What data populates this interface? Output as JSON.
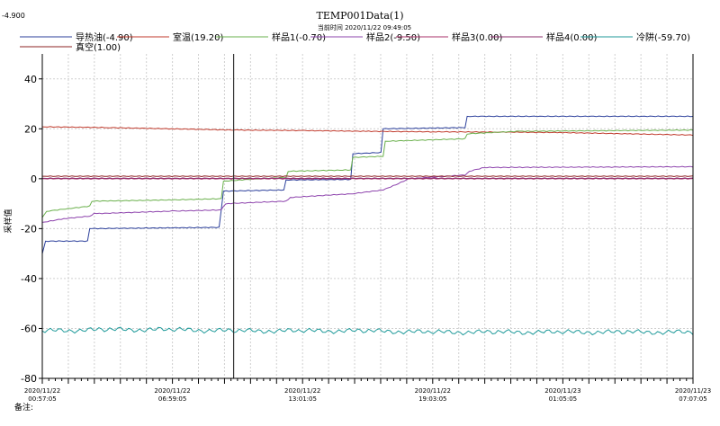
{
  "top_left_value": "-4.900",
  "title": "TEMP001Data(1)",
  "subtitle": "当前时间 2020/11/22  09:49:05",
  "ylabel": "采样值",
  "note_label": "备注:",
  "colors": {
    "background": "#ffffff",
    "grid": "#cfcfcf",
    "axis": "#000000",
    "cursor": "#333333"
  },
  "chart_data": {
    "type": "line",
    "title": "TEMP001Data(1)",
    "ylabel": "采样值",
    "xlabel": "",
    "ylim": [
      -80,
      50
    ],
    "yticks": [
      -80,
      -60,
      -40,
      -20,
      0,
      20,
      40
    ],
    "x_start": "2020/11/22 00:57:05",
    "x_end": "2020/11/23 07:07:05",
    "x_tick_labels": [
      [
        "2020/11/22",
        "00:57:05"
      ],
      [
        "2020/11/22",
        "06:59:05"
      ],
      [
        "2020/11/22",
        "13:01:05"
      ],
      [
        "2020/11/22",
        "19:03:05"
      ],
      [
        "2020/11/23",
        "01:05:05"
      ],
      [
        "2020/11/23",
        "07:07:05"
      ]
    ],
    "x_tick_hours": [
      0,
      6.0333,
      12.0667,
      18.1,
      24.1333,
      30.1667
    ],
    "x_range_hours": [
      0,
      30.1667
    ],
    "cursor_hours": 8.87,
    "grid": true,
    "legend_position": "top",
    "series": [
      {
        "name": "导热油(-4.90)",
        "color": "#2b3f9b",
        "points": [
          [
            0,
            -30
          ],
          [
            0.15,
            -25
          ],
          [
            2.1,
            -25
          ],
          [
            2.2,
            -20
          ],
          [
            8.2,
            -19.5
          ],
          [
            8.4,
            -5
          ],
          [
            11.2,
            -4.5
          ],
          [
            11.3,
            -0.5
          ],
          [
            14.3,
            -0.3
          ],
          [
            14.4,
            10
          ],
          [
            15.7,
            10.5
          ],
          [
            15.8,
            20
          ],
          [
            19.6,
            20.5
          ],
          [
            19.7,
            25
          ],
          [
            30.1667,
            25
          ]
        ]
      },
      {
        "name": "室温(19.20)",
        "color": "#c0392b",
        "points": [
          [
            0,
            20.8
          ],
          [
            3,
            20.5
          ],
          [
            6,
            20
          ],
          [
            9,
            19.5
          ],
          [
            12,
            19.3
          ],
          [
            15,
            19
          ],
          [
            18,
            18.8
          ],
          [
            21,
            18.7
          ],
          [
            24,
            18.5
          ],
          [
            27,
            18
          ],
          [
            30.1667,
            17.5
          ]
        ]
      },
      {
        "name": "样品1(-0.70)",
        "color": "#6ab04c",
        "points": [
          [
            0,
            -15.5
          ],
          [
            0.2,
            -13
          ],
          [
            2.2,
            -11
          ],
          [
            2.3,
            -9
          ],
          [
            6,
            -8.5
          ],
          [
            8.3,
            -8
          ],
          [
            8.4,
            -1
          ],
          [
            10,
            0
          ],
          [
            11.3,
            0.5
          ],
          [
            11.4,
            3
          ],
          [
            14.3,
            3.5
          ],
          [
            14.4,
            8.5
          ],
          [
            15.8,
            9
          ],
          [
            15.9,
            15
          ],
          [
            19.6,
            16
          ],
          [
            19.7,
            18
          ],
          [
            22,
            19
          ],
          [
            30.1667,
            19.5
          ]
        ]
      },
      {
        "name": "样品2(-9.50)",
        "color": "#8e44ad",
        "points": [
          [
            0,
            -17.5
          ],
          [
            1,
            -16
          ],
          [
            2.2,
            -15
          ],
          [
            2.4,
            -14
          ],
          [
            6,
            -13
          ],
          [
            8.3,
            -12.5
          ],
          [
            8.5,
            -10
          ],
          [
            11.3,
            -9
          ],
          [
            11.5,
            -7.5
          ],
          [
            14.4,
            -6
          ],
          [
            15.8,
            -4.5
          ],
          [
            16.5,
            -2
          ],
          [
            17,
            0
          ],
          [
            19.6,
            1.5
          ],
          [
            19.8,
            3
          ],
          [
            20.5,
            4.5
          ],
          [
            30.1667,
            4.8
          ]
        ]
      },
      {
        "name": "样品3(0.00)",
        "color": "#a83268",
        "points": [
          [
            0,
            0
          ],
          [
            30.1667,
            0
          ]
        ]
      },
      {
        "name": "样品4(0.00)",
        "color": "#8e2d6e",
        "points": [
          [
            0,
            0.2
          ],
          [
            30.1667,
            0.2
          ]
        ]
      },
      {
        "name": "冷阱(-59.70)",
        "color": "#1f9a9a",
        "points": [
          [
            0,
            -61
          ],
          [
            3,
            -60.5
          ],
          [
            6,
            -60.5
          ],
          [
            9,
            -61
          ],
          [
            12,
            -61
          ],
          [
            15,
            -61
          ],
          [
            18,
            -61.5
          ],
          [
            21,
            -61.5
          ],
          [
            24,
            -61.5
          ],
          [
            27,
            -61.5
          ],
          [
            30.1667,
            -61.5
          ]
        ]
      },
      {
        "name": "真空(1.00)",
        "color": "#8e2323",
        "points": [
          [
            0,
            1
          ],
          [
            30.1667,
            1
          ]
        ]
      }
    ]
  }
}
